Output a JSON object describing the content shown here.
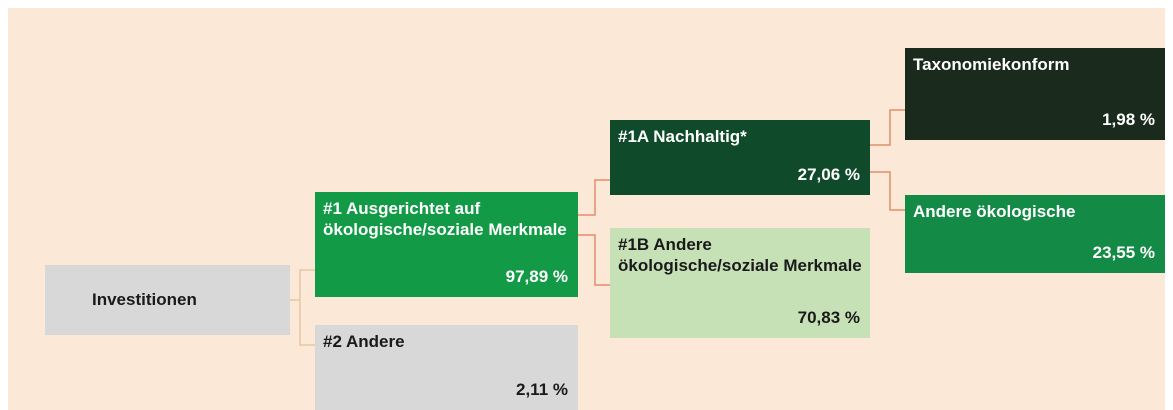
{
  "nodes": [
    {
      "label": "Investitionen"
    },
    {
      "label": "#1 Ausgerichtet auf ökologische/soziale Merkmale",
      "value": "97,89 %"
    },
    {
      "label": "#2 Andere",
      "value": "2,11 %"
    },
    {
      "label": "#1A Nachhaltig*",
      "value": "27,06 %"
    },
    {
      "label": "#1B Andere ökologische/soziale Merkmale",
      "value": "70,83 %"
    },
    {
      "label": "Taxonomiekonform",
      "value": "1,98 %"
    },
    {
      "label": "Andere ökologische",
      "value": "23,55 %"
    }
  ]
}
